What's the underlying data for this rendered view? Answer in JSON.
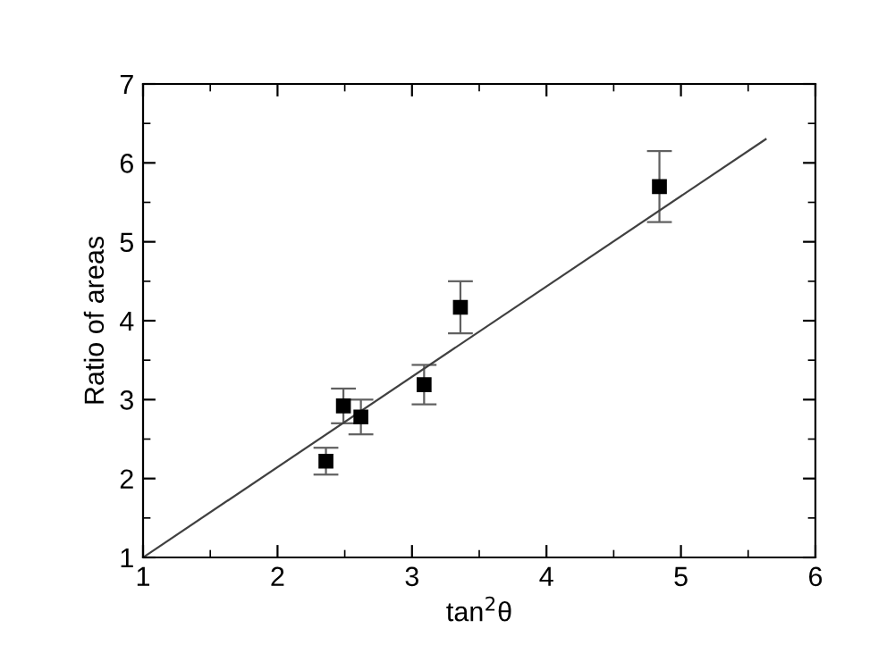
{
  "chart_data": {
    "type": "scatter",
    "xlabel": "tan$^{2}$θ",
    "ylabel": "Ratio of areas",
    "xlim": [
      1,
      6
    ],
    "ylim": [
      1,
      7
    ],
    "xticks": [
      1,
      2,
      3,
      4,
      5,
      6
    ],
    "yticks": [
      1,
      2,
      3,
      4,
      5,
      6,
      7
    ],
    "grid": false,
    "legend": false,
    "series": [
      {
        "color": "#000000",
        "marker": "square",
        "x": [
          2.36,
          2.49,
          2.62,
          3.09,
          3.36,
          4.84
        ],
        "values": [
          2.22,
          2.92,
          2.78,
          3.19,
          4.17,
          5.7
        ],
        "errors": [
          0.17,
          0.22,
          0.22,
          0.25,
          0.33,
          0.45
        ]
      },
      {
        "type": "line",
        "color": "#404040",
        "line_style": "solid",
        "marker": "none",
        "x": [
          1,
          5.63
        ],
        "values": [
          1,
          6.3
        ]
      }
    ]
  }
}
